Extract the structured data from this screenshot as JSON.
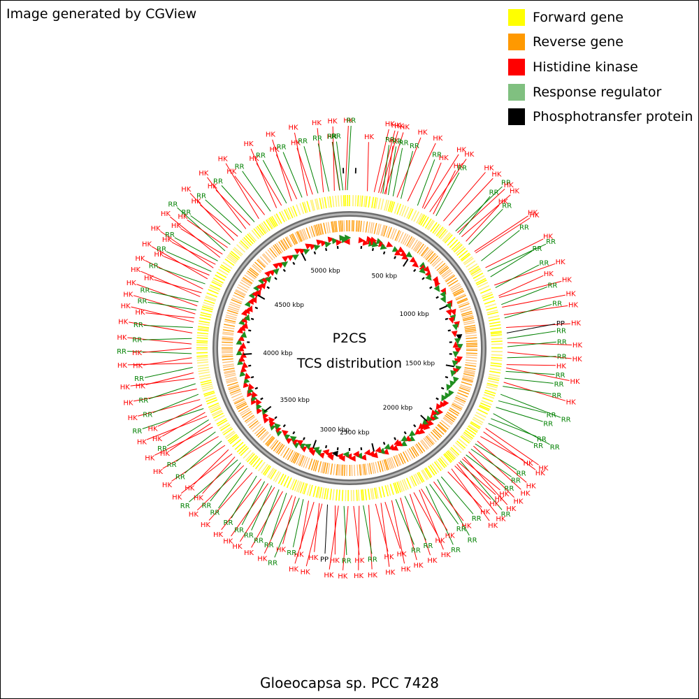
{
  "credit": "Image generated by CGView",
  "title_top": "P2CS",
  "title_bottom": "TCS distribution",
  "caption": "Gloeocapsa sp. PCC 7428",
  "colors": {
    "forward": "#ffff00",
    "reverse": "#ff9900",
    "hk": "#ff0000",
    "rr": "#80c080",
    "rr_line": "#008000",
    "pp": "#000000",
    "backbone": "#8a8a8a"
  },
  "legend": [
    {
      "label": "Forward gene",
      "color": "#ffff00"
    },
    {
      "label": "Reverse gene",
      "color": "#ff9900"
    },
    {
      "label": "Histidine kinase",
      "color": "#ff0000"
    },
    {
      "label": "Response regulator",
      "color": "#80c080"
    },
    {
      "label": "Phosphotransfer protein",
      "color": "#000000"
    }
  ],
  "genome": {
    "length_kbp": 5400,
    "tick_labels": [
      "500 kbp",
      "1000 kbp",
      "1500 kbp",
      "2000 kbp",
      "2500 kbp",
      "3000 kbp",
      "3500 kbp",
      "4000 kbp",
      "4500 kbp",
      "5000 kbp"
    ]
  },
  "features": [
    {
      "t": "HK",
      "a": -3.6,
      "d": 1,
      "s": 0
    },
    {
      "t": "RR",
      "a": -2.4,
      "d": 1,
      "s": 0
    },
    {
      "t": "HK",
      "a": -1.5,
      "d": 0,
      "s": 1
    },
    {
      "t": "RR",
      "a": -0.8,
      "d": 1,
      "s": 1
    },
    {
      "t": "HK",
      "a": 6.5,
      "d": 1,
      "s": 0
    },
    {
      "t": "HK",
      "a": 9,
      "d": 1,
      "s": 1
    },
    {
      "t": "HK",
      "a": 10.6,
      "d": 1,
      "s": 1
    },
    {
      "t": "HK",
      "a": 11.4,
      "d": 1,
      "s": 1
    },
    {
      "t": "RR",
      "a": 12.2,
      "d": 1,
      "s": 0
    },
    {
      "t": "HK",
      "a": 12.8,
      "d": 1,
      "s": 1
    },
    {
      "t": "HK",
      "a": 13.3,
      "d": 1,
      "s": 0
    },
    {
      "t": "RR",
      "a": 14.2,
      "d": 1,
      "s": 0
    },
    {
      "t": "RR",
      "a": 16,
      "d": 1,
      "s": 0
    },
    {
      "t": "HK",
      "a": 17.5,
      "d": 1,
      "s": 1
    },
    {
      "t": "RR",
      "a": 19,
      "d": 1,
      "s": 0
    },
    {
      "t": "HK",
      "a": 21.6,
      "d": 1,
      "s": 1
    },
    {
      "t": "RR",
      "a": 25.5,
      "d": 1,
      "s": 0
    },
    {
      "t": "HK",
      "a": 27.5,
      "d": 1,
      "s": 0
    },
    {
      "t": "HK",
      "a": 28.2,
      "d": 1,
      "s": 1
    },
    {
      "t": "HK",
      "a": 30.5,
      "d": 1,
      "s": 1
    },
    {
      "t": "HK",
      "a": 32,
      "d": 1,
      "s": 0
    },
    {
      "t": "RR",
      "a": 33.2,
      "d": 1,
      "s": 0
    },
    {
      "t": "HK",
      "a": 36.5,
      "d": 1,
      "s": 1
    },
    {
      "t": "HK",
      "a": 39,
      "d": 1,
      "s": 1
    },
    {
      "t": "RR",
      "a": 42.2,
      "d": 1,
      "s": 1
    },
    {
      "t": "HK",
      "a": 43.1,
      "d": 1,
      "s": 1
    },
    {
      "t": "RR",
      "a": 44,
      "d": 1,
      "s": 0
    },
    {
      "t": "HK",
      "a": 45.2,
      "d": 1,
      "s": 1
    },
    {
      "t": "HK",
      "a": 47.5,
      "d": 1,
      "s": 0
    },
    {
      "t": "RR",
      "a": 49,
      "d": 1,
      "s": 0
    },
    {
      "t": "HK",
      "a": 52.3,
      "d": 1,
      "s": 1
    },
    {
      "t": "HK",
      "a": 53,
      "d": 0,
      "s": 1
    },
    {
      "t": "RR",
      "a": 56.5,
      "d": 1,
      "s": 0
    },
    {
      "t": "HK",
      "a": 59.4,
      "d": 1,
      "s": 1
    },
    {
      "t": "RR",
      "a": 60.9,
      "d": 1,
      "s": 1
    },
    {
      "t": "RR",
      "a": 63.2,
      "d": 1,
      "s": 0
    },
    {
      "t": "HK",
      "a": 66.5,
      "d": 1,
      "s": 1
    },
    {
      "t": "RR",
      "a": 67.5,
      "d": 1,
      "s": 0
    },
    {
      "t": "HK",
      "a": 70.7,
      "d": 1,
      "s": 0
    },
    {
      "t": "HK",
      "a": 71.3,
      "d": 1,
      "s": 1
    },
    {
      "t": "RR",
      "a": 74,
      "d": 1,
      "s": 0
    },
    {
      "t": "HK",
      "a": 75,
      "d": 1,
      "s": 1
    },
    {
      "t": "HK",
      "a": 77.8,
      "d": 1,
      "s": 1
    },
    {
      "t": "RR",
      "a": 79,
      "d": 1,
      "s": 0
    },
    {
      "t": "HK",
      "a": 82.5,
      "d": 1,
      "s": 1
    },
    {
      "t": "PP",
      "a": 84.5,
      "d": 1,
      "s": 0
    },
    {
      "t": "RR",
      "a": 86.5,
      "d": 1,
      "s": 0
    },
    {
      "t": "HK",
      "a": 88,
      "d": 0,
      "s": 1
    },
    {
      "t": "RR",
      "a": 89.5,
      "d": 1,
      "s": 0
    },
    {
      "t": "HK",
      "a": 91.5,
      "d": 1,
      "s": 1
    },
    {
      "t": "RR",
      "a": 93.5,
      "d": 1,
      "s": 0
    },
    {
      "t": "HK",
      "a": 96,
      "d": 1,
      "s": 0
    },
    {
      "t": "HK",
      "a": 97.2,
      "d": 1,
      "s": 1
    },
    {
      "t": "RR",
      "a": 98.5,
      "d": 1,
      "s": 0
    },
    {
      "t": "RR",
      "a": 101,
      "d": 1,
      "s": 0
    },
    {
      "t": "HK",
      "a": 102.5,
      "d": 1,
      "s": 1
    },
    {
      "t": "RR",
      "a": 104,
      "d": 1,
      "s": 0
    },
    {
      "t": "RR",
      "a": 107,
      "d": 1,
      "s": 1
    },
    {
      "t": "RR",
      "a": 109.5,
      "d": 1,
      "s": 0
    },
    {
      "t": "RR",
      "a": 112,
      "d": 1,
      "s": 0
    },
    {
      "t": "RR",
      "a": 114.5,
      "d": 1,
      "s": 1
    },
    {
      "t": "RR",
      "a": 116.5,
      "d": 1,
      "s": 0
    },
    {
      "t": "RR",
      "a": 118.5,
      "d": 1,
      "s": 0
    },
    {
      "t": "HK",
      "a": 120.5,
      "d": 1,
      "s": 1
    },
    {
      "t": "HK",
      "a": 122,
      "d": 1,
      "s": 1
    },
    {
      "t": "HK",
      "a": 124,
      "d": 1,
      "s": 0
    },
    {
      "t": "HK",
      "a": 126,
      "d": 1,
      "s": 1
    },
    {
      "t": "RR",
      "a": 127.3,
      "d": 1,
      "s": 0
    },
    {
      "t": "HK",
      "a": 128.3,
      "d": 1,
      "s": 1
    },
    {
      "t": "RR",
      "a": 129.7,
      "d": 1,
      "s": 0
    },
    {
      "t": "HK",
      "a": 131,
      "d": 1,
      "s": 1
    },
    {
      "t": "RR",
      "a": 132.5,
      "d": 1,
      "s": 0
    },
    {
      "t": "HK",
      "a": 133.6,
      "d": 1,
      "s": 1
    },
    {
      "t": "HK",
      "a": 134.5,
      "d": 1,
      "s": 0
    },
    {
      "t": "RR",
      "a": 135.5,
      "d": 1,
      "s": 1
    },
    {
      "t": "HK",
      "a": 136.3,
      "d": 1,
      "s": 0
    },
    {
      "t": "HK",
      "a": 137.2,
      "d": 1,
      "s": 1
    },
    {
      "t": "HK",
      "a": 138.2,
      "d": 1,
      "s": 0
    },
    {
      "t": "HK",
      "a": 139.8,
      "d": 1,
      "s": 1
    },
    {
      "t": "HK",
      "a": 141.5,
      "d": 1,
      "s": 0
    },
    {
      "t": "RR",
      "a": 144.5,
      "d": 1,
      "s": 0
    },
    {
      "t": "RR",
      "a": 146.2,
      "d": 1,
      "s": 1
    },
    {
      "t": "HK",
      "a": 147.8,
      "d": 1,
      "s": 0
    },
    {
      "t": "RR",
      "a": 149.5,
      "d": 1,
      "s": 0
    },
    {
      "t": "RR",
      "a": 151,
      "d": 1,
      "s": 1
    },
    {
      "t": "HK",
      "a": 153,
      "d": 1,
      "s": 0
    },
    {
      "t": "HK",
      "a": 153.8,
      "d": 1,
      "s": 1
    },
    {
      "t": "HK",
      "a": 156,
      "d": 1,
      "s": 0
    },
    {
      "t": "HK",
      "a": 157.5,
      "d": 1,
      "s": 1
    },
    {
      "t": "RR",
      "a": 159.5,
      "d": 1,
      "s": 0
    },
    {
      "t": "HK",
      "a": 161.2,
      "d": 1,
      "s": 1
    },
    {
      "t": "RR",
      "a": 163,
      "d": 1,
      "s": 0
    },
    {
      "t": "HK",
      "a": 164.5,
      "d": 1,
      "s": 1
    },
    {
      "t": "HK",
      "a": 167,
      "d": 1,
      "s": 0
    },
    {
      "t": "HK",
      "a": 168.5,
      "d": 1,
      "s": 1
    },
    {
      "t": "HK",
      "a": 170.5,
      "d": 1,
      "s": 0
    },
    {
      "t": "HK",
      "a": 173,
      "d": 1,
      "s": 1
    },
    {
      "t": "RR",
      "a": 175,
      "d": 1,
      "s": 0
    },
    {
      "t": "HK",
      "a": 176.5,
      "d": 1,
      "s": 1
    },
    {
      "t": "HK",
      "a": 178.5,
      "d": 1,
      "s": 0
    },
    {
      "t": "HK",
      "a": 180.5,
      "d": 1,
      "s": 1
    },
    {
      "t": "RR",
      "a": 182,
      "d": 1,
      "s": 0
    },
    {
      "t": "HK",
      "a": 184,
      "d": 1,
      "s": 1
    },
    {
      "t": "HK",
      "a": 185.2,
      "d": 1,
      "s": 0
    },
    {
      "t": "PP",
      "a": 188,
      "d": 1,
      "s": 0
    },
    {
      "t": "HK",
      "a": 190,
      "d": 1,
      "s": 1
    },
    {
      "t": "HK",
      "a": 191,
      "d": 1,
      "s": 0
    },
    {
      "t": "HK",
      "a": 193,
      "d": 1,
      "s": 1
    },
    {
      "t": "HK",
      "a": 195,
      "d": 1,
      "s": 0
    },
    {
      "t": "RR",
      "a": 197,
      "d": 1,
      "s": 0
    },
    {
      "t": "RR",
      "a": 198.5,
      "d": 1,
      "s": 1
    },
    {
      "t": "HK",
      "a": 200,
      "d": 1,
      "s": 0
    },
    {
      "t": "HK",
      "a": 201.3,
      "d": 1,
      "s": 1
    },
    {
      "t": "RR",
      "a": 203.5,
      "d": 1,
      "s": 0
    },
    {
      "t": "HK",
      "a": 205,
      "d": 1,
      "s": 1
    },
    {
      "t": "RR",
      "a": 206.5,
      "d": 1,
      "s": 0
    },
    {
      "t": "HK",
      "a": 208.3,
      "d": 1,
      "s": 1
    },
    {
      "t": "RR",
      "a": 209.5,
      "d": 1,
      "s": 0
    },
    {
      "t": "HK",
      "a": 211,
      "d": 1,
      "s": 1
    },
    {
      "t": "RR",
      "a": 212.5,
      "d": 1,
      "s": 0
    },
    {
      "t": "HK",
      "a": 214,
      "d": 1,
      "s": 1
    },
    {
      "t": "RR",
      "a": 216,
      "d": 1,
      "s": 0
    },
    {
      "t": "HK",
      "a": 218,
      "d": 1,
      "s": 1
    },
    {
      "t": "RR",
      "a": 220.5,
      "d": 1,
      "s": 0
    },
    {
      "t": "HK",
      "a": 222,
      "d": 1,
      "s": 1
    },
    {
      "t": "RR",
      "a": 223.5,
      "d": 1,
      "s": 0
    },
    {
      "t": "RR",
      "a": 225,
      "d": 1,
      "s": 1
    },
    {
      "t": "HK",
      "a": 226.5,
      "d": 1,
      "s": 0
    },
    {
      "t": "HK",
      "a": 228,
      "d": 1,
      "s": 1
    },
    {
      "t": "HK",
      "a": 230,
      "d": 1,
      "s": 0
    },
    {
      "t": "HK",
      "a": 232,
      "d": 1,
      "s": 1
    },
    {
      "t": "RR",
      "a": 234,
      "d": 1,
      "s": 0
    },
    {
      "t": "HK",
      "a": 236,
      "d": 1,
      "s": 1
    },
    {
      "t": "RR",
      "a": 238,
      "d": 1,
      "s": 0
    },
    {
      "t": "HK",
      "a": 240,
      "d": 1,
      "s": 1
    },
    {
      "t": "HK",
      "a": 241.5,
      "d": 1,
      "s": 0
    },
    {
      "t": "RR",
      "a": 243,
      "d": 1,
      "s": 0
    },
    {
      "t": "HK",
      "a": 244.5,
      "d": 1,
      "s": 1
    },
    {
      "t": "HK",
      "a": 246,
      "d": 1,
      "s": 0
    },
    {
      "t": "RR",
      "a": 247.5,
      "d": 1,
      "s": 1
    },
    {
      "t": "HK",
      "a": 249,
      "d": 1,
      "s": 0
    },
    {
      "t": "HK",
      "a": 251,
      "d": 1,
      "s": 1
    },
    {
      "t": "RR",
      "a": 253,
      "d": 1,
      "s": 0
    },
    {
      "t": "HK",
      "a": 255,
      "d": 1,
      "s": 1
    },
    {
      "t": "RR",
      "a": 257,
      "d": 1,
      "s": 0
    },
    {
      "t": "HK",
      "a": 259,
      "d": 1,
      "s": 1
    },
    {
      "t": "HK",
      "a": 261,
      "d": 1,
      "s": 0
    },
    {
      "t": "RR",
      "a": 263,
      "d": 1,
      "s": 0
    },
    {
      "t": "HK",
      "a": 264.5,
      "d": 1,
      "s": 1
    },
    {
      "t": "HK",
      "a": 266.5,
      "d": 1,
      "s": 0
    },
    {
      "t": "RR",
      "a": 268,
      "d": 1,
      "s": 1
    },
    {
      "t": "HK",
      "a": 270,
      "d": 1,
      "s": 0
    },
    {
      "t": "HK",
      "a": 271.5,
      "d": 1,
      "s": 1
    },
    {
      "t": "RR",
      "a": 273.5,
      "d": 1,
      "s": 0
    },
    {
      "t": "HK",
      "a": 275.5,
      "d": 1,
      "s": 1
    },
    {
      "t": "RR",
      "a": 277.5,
      "d": 1,
      "s": 0
    },
    {
      "t": "HK",
      "a": 279.5,
      "d": 1,
      "s": 1
    },
    {
      "t": "HK",
      "a": 281,
      "d": 1,
      "s": 0
    },
    {
      "t": "HK",
      "a": 282.5,
      "d": 1,
      "s": 1
    },
    {
      "t": "RR",
      "a": 284,
      "d": 1,
      "s": 0
    },
    {
      "t": "HK",
      "a": 285.5,
      "d": 1,
      "s": 1
    },
    {
      "t": "RR",
      "a": 287,
      "d": 1,
      "s": 0
    },
    {
      "t": "HK",
      "a": 289,
      "d": 1,
      "s": 1
    },
    {
      "t": "HK",
      "a": 290.5,
      "d": 1,
      "s": 0
    },
    {
      "t": "HK",
      "a": 292,
      "d": 1,
      "s": 1
    },
    {
      "t": "RR",
      "a": 294,
      "d": 1,
      "s": 0
    },
    {
      "t": "HK",
      "a": 296,
      "d": 1,
      "s": 1
    },
    {
      "t": "HK",
      "a": 297.5,
      "d": 1,
      "s": 0
    },
    {
      "t": "RR",
      "a": 299,
      "d": 1,
      "s": 0
    },
    {
      "t": "HK",
      "a": 300.5,
      "d": 1,
      "s": 1
    },
    {
      "t": "HK",
      "a": 302,
      "d": 1,
      "s": 0
    },
    {
      "t": "RR",
      "a": 303.5,
      "d": 1,
      "s": 0
    },
    {
      "t": "HK",
      "a": 305,
      "d": 1,
      "s": 1
    },
    {
      "t": "HK",
      "a": 306.5,
      "d": 1,
      "s": 0
    },
    {
      "t": "RR",
      "a": 308,
      "d": 1,
      "s": 1
    },
    {
      "t": "HK",
      "a": 309.5,
      "d": 1,
      "s": 0
    },
    {
      "t": "RR",
      "a": 311,
      "d": 1,
      "s": 0
    },
    {
      "t": "HK",
      "a": 313,
      "d": 1,
      "s": 1
    },
    {
      "t": "HK",
      "a": 315,
      "d": 1,
      "s": 0
    },
    {
      "t": "RR",
      "a": 317,
      "d": 1,
      "s": 0
    },
    {
      "t": "HK",
      "a": 319,
      "d": 1,
      "s": 1
    },
    {
      "t": "HK",
      "a": 321,
      "d": 1,
      "s": 0
    },
    {
      "t": "RR",
      "a": 323,
      "d": 1,
      "s": 0
    },
    {
      "t": "HK",
      "a": 325,
      "d": 1,
      "s": 1
    },
    {
      "t": "HK",
      "a": 327.5,
      "d": 1,
      "s": 0
    },
    {
      "t": "RR",
      "a": 330,
      "d": 1,
      "s": 0
    },
    {
      "t": "HK",
      "a": 332.5,
      "d": 1,
      "s": 1
    },
    {
      "t": "HK",
      "a": 334.5,
      "d": 1,
      "s": 0
    },
    {
      "t": "RR",
      "a": 336.5,
      "d": 1,
      "s": 0
    },
    {
      "t": "HK",
      "a": 338.5,
      "d": 1,
      "s": 1
    },
    {
      "t": "HK",
      "a": 340.5,
      "d": 1,
      "s": 0
    },
    {
      "t": "RR",
      "a": 342.5,
      "d": 1,
      "s": 0
    },
    {
      "t": "HK",
      "a": 344.5,
      "d": 1,
      "s": 1
    },
    {
      "t": "HK",
      "a": 346.5,
      "d": 1,
      "s": 0
    },
    {
      "t": "RR",
      "a": 348.5,
      "d": 1,
      "s": 0
    },
    {
      "t": "HK",
      "a": 350.5,
      "d": 1,
      "s": 1
    },
    {
      "t": "RR",
      "a": 352.5,
      "d": 1,
      "s": 0
    },
    {
      "t": "HK",
      "a": 354.5,
      "d": 1,
      "s": 1
    },
    {
      "t": "RR",
      "a": 356.5,
      "d": 1,
      "s": 0
    }
  ]
}
